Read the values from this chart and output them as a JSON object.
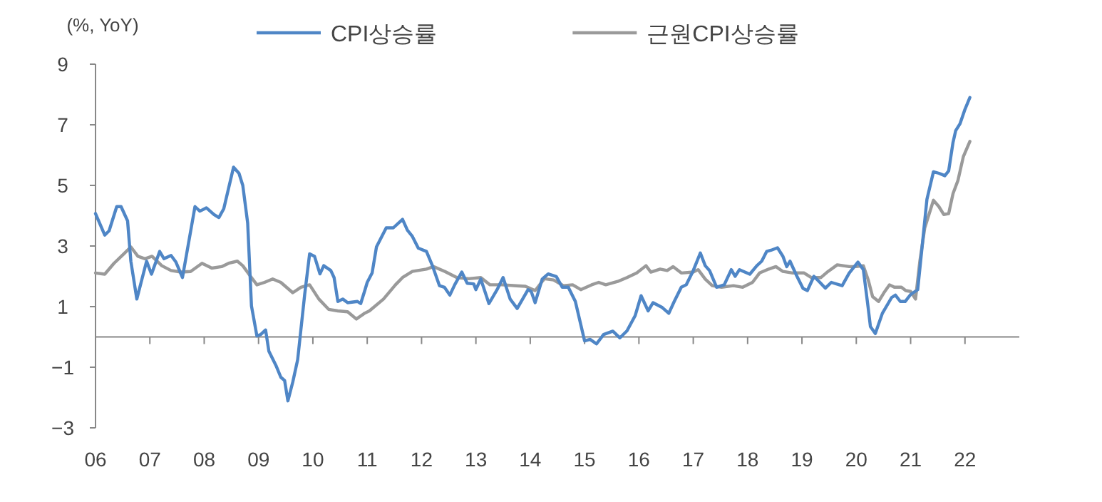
{
  "chart_data": {
    "type": "line",
    "ylabel": "(%, YoY)",
    "legend": "top",
    "grid": false,
    "marker": "none",
    "line_style": "solid",
    "xlim": [
      2006,
      2023
    ],
    "ylim": [
      -3,
      9
    ],
    "yticks": [
      {
        "value": -3,
        "label": "−3"
      },
      {
        "value": -1,
        "label": "−1"
      },
      1,
      3,
      5,
      7,
      9
    ],
    "xticks": [
      {
        "value": 2006,
        "label": "06"
      },
      {
        "value": 2007,
        "label": "07"
      },
      {
        "value": 2008,
        "label": "08"
      },
      {
        "value": 2009,
        "label": "09"
      },
      {
        "value": 2010,
        "label": "10"
      },
      {
        "value": 2011,
        "label": "11"
      },
      {
        "value": 2012,
        "label": "12"
      },
      {
        "value": 2013,
        "label": "13"
      },
      {
        "value": 2014,
        "label": "14"
      },
      {
        "value": 2015,
        "label": "15"
      },
      {
        "value": 2016,
        "label": "16"
      },
      {
        "value": 2017,
        "label": "17"
      },
      {
        "value": 2018,
        "label": "18"
      },
      {
        "value": 2019,
        "label": "19"
      },
      {
        "value": 2020,
        "label": "20"
      },
      {
        "value": 2021,
        "label": "21"
      },
      {
        "value": 2022,
        "label": "22"
      }
    ],
    "series": [
      {
        "name": "CPI상승률",
        "color": "#4f86c6",
        "x": [
          2006.0,
          2006.17,
          2006.25,
          2006.39,
          2006.47,
          2006.59,
          2006.65,
          2006.76,
          2006.94,
          2007.03,
          2007.18,
          2007.26,
          2007.39,
          2007.48,
          2007.6,
          2007.83,
          2007.92,
          2008.04,
          2008.18,
          2008.27,
          2008.36,
          2008.54,
          2008.64,
          2008.71,
          2008.8,
          2008.87,
          2008.97,
          2009.04,
          2009.13,
          2009.19,
          2009.32,
          2009.41,
          2009.48,
          2009.54,
          2009.63,
          2009.72,
          2009.85,
          2009.94,
          2010.03,
          2010.13,
          2010.2,
          2010.33,
          2010.39,
          2010.46,
          2010.55,
          2010.64,
          2010.82,
          2010.88,
          2010.95,
          2011.0,
          2011.09,
          2011.17,
          2011.35,
          2011.48,
          2011.65,
          2011.74,
          2011.83,
          2011.94,
          2012.09,
          2012.2,
          2012.33,
          2012.42,
          2012.52,
          2012.61,
          2012.74,
          2012.84,
          2012.96,
          2013.0,
          2013.09,
          2013.24,
          2013.39,
          2013.5,
          2013.63,
          2013.76,
          2013.96,
          2014.02,
          2014.09,
          2014.22,
          2014.33,
          2014.48,
          2014.59,
          2014.7,
          2014.83,
          2015.0,
          2015.1,
          2015.22,
          2015.35,
          2015.52,
          2015.65,
          2015.78,
          2015.93,
          2016.04,
          2016.17,
          2016.26,
          2016.43,
          2016.55,
          2016.65,
          2016.78,
          2016.87,
          2017.0,
          2017.13,
          2017.22,
          2017.3,
          2017.43,
          2017.57,
          2017.7,
          2017.77,
          2017.85,
          2018.04,
          2018.17,
          2018.26,
          2018.35,
          2018.43,
          2018.55,
          2018.65,
          2018.72,
          2018.78,
          2018.9,
          2019.02,
          2019.1,
          2019.22,
          2019.33,
          2019.43,
          2019.54,
          2019.74,
          2019.87,
          2020.03,
          2020.13,
          2020.22,
          2020.26,
          2020.35,
          2020.48,
          2020.65,
          2020.72,
          2020.81,
          2020.9,
          2021.0,
          2021.13,
          2021.22,
          2021.3,
          2021.42,
          2021.52,
          2021.63,
          2021.7,
          2021.78,
          2021.83,
          2021.91,
          2022.0,
          2022.09
        ],
        "values": [
          4.07,
          3.36,
          3.5,
          4.3,
          4.3,
          3.83,
          2.5,
          1.25,
          2.5,
          2.07,
          2.82,
          2.58,
          2.69,
          2.47,
          1.96,
          4.3,
          4.15,
          4.26,
          4.04,
          3.94,
          4.23,
          5.6,
          5.4,
          5.0,
          3.76,
          1.02,
          0.03,
          0.08,
          0.23,
          -0.47,
          -0.94,
          -1.33,
          -1.44,
          -2.11,
          -1.49,
          -0.75,
          1.41,
          2.74,
          2.66,
          2.08,
          2.35,
          2.19,
          1.96,
          1.17,
          1.25,
          1.13,
          1.17,
          1.1,
          1.5,
          1.8,
          2.11,
          2.97,
          3.6,
          3.6,
          3.88,
          3.52,
          3.32,
          2.93,
          2.82,
          2.35,
          1.69,
          1.64,
          1.38,
          1.72,
          2.14,
          1.77,
          1.75,
          1.56,
          1.91,
          1.1,
          1.56,
          1.96,
          1.25,
          0.94,
          1.56,
          1.49,
          1.13,
          1.91,
          2.08,
          1.99,
          1.64,
          1.64,
          1.17,
          -0.13,
          -0.08,
          -0.23,
          0.08,
          0.19,
          -0.03,
          0.2,
          0.7,
          1.36,
          0.86,
          1.13,
          0.97,
          0.78,
          1.17,
          1.64,
          1.72,
          2.19,
          2.77,
          2.35,
          2.19,
          1.64,
          1.72,
          2.22,
          2.0,
          2.22,
          2.07,
          2.35,
          2.5,
          2.82,
          2.86,
          2.94,
          2.66,
          2.32,
          2.5,
          2.03,
          1.6,
          1.53,
          2.0,
          1.8,
          1.61,
          1.8,
          1.69,
          2.11,
          2.47,
          2.22,
          0.94,
          0.34,
          0.11,
          0.78,
          1.3,
          1.38,
          1.17,
          1.17,
          1.4,
          1.56,
          3.13,
          4.54,
          5.45,
          5.4,
          5.32,
          5.48,
          6.42,
          6.81,
          7.04,
          7.51,
          7.9
        ]
      },
      {
        "name": "근원CPI상승률",
        "color": "#9a9a9a",
        "x": [
          2006.0,
          2006.17,
          2006.34,
          2006.52,
          2006.65,
          2006.78,
          2006.91,
          2007.04,
          2007.22,
          2007.39,
          2007.57,
          2007.75,
          2007.96,
          2008.14,
          2008.32,
          2008.45,
          2008.61,
          2008.71,
          2008.84,
          2008.97,
          2009.11,
          2009.26,
          2009.41,
          2009.63,
          2009.78,
          2009.94,
          2010.11,
          2010.29,
          2010.46,
          2010.64,
          2010.8,
          2010.95,
          2011.04,
          2011.3,
          2011.52,
          2011.65,
          2011.83,
          2012.09,
          2012.22,
          2012.43,
          2012.65,
          2012.87,
          2013.09,
          2013.26,
          2013.48,
          2013.74,
          2013.91,
          2014.09,
          2014.26,
          2014.43,
          2014.61,
          2014.78,
          2014.93,
          2015.13,
          2015.26,
          2015.39,
          2015.61,
          2015.78,
          2015.96,
          2016.13,
          2016.22,
          2016.39,
          2016.52,
          2016.63,
          2016.78,
          2017.0,
          2017.09,
          2017.22,
          2017.35,
          2017.52,
          2017.74,
          2017.91,
          2018.09,
          2018.22,
          2018.39,
          2018.52,
          2018.65,
          2018.83,
          2019.04,
          2019.17,
          2019.35,
          2019.48,
          2019.65,
          2019.87,
          2020.0,
          2020.13,
          2020.22,
          2020.3,
          2020.41,
          2020.52,
          2020.61,
          2020.7,
          2020.83,
          2020.91,
          2021.0,
          2021.09,
          2021.17,
          2021.26,
          2021.42,
          2021.52,
          2021.61,
          2021.7,
          2021.78,
          2021.87,
          2021.97,
          2022.09
        ],
        "values": [
          2.11,
          2.07,
          2.43,
          2.74,
          2.97,
          2.66,
          2.58,
          2.66,
          2.35,
          2.19,
          2.14,
          2.16,
          2.43,
          2.27,
          2.32,
          2.43,
          2.5,
          2.35,
          2.03,
          1.72,
          1.8,
          1.91,
          1.8,
          1.46,
          1.64,
          1.72,
          1.25,
          0.91,
          0.86,
          0.83,
          0.59,
          0.78,
          0.86,
          1.25,
          1.72,
          1.96,
          2.16,
          2.24,
          2.32,
          2.16,
          1.96,
          1.92,
          1.96,
          1.72,
          1.72,
          1.69,
          1.67,
          1.53,
          1.92,
          1.88,
          1.69,
          1.72,
          1.56,
          1.72,
          1.8,
          1.72,
          1.83,
          1.96,
          2.11,
          2.35,
          2.14,
          2.24,
          2.19,
          2.32,
          2.11,
          2.14,
          2.22,
          1.91,
          1.69,
          1.64,
          1.69,
          1.64,
          1.8,
          2.11,
          2.24,
          2.32,
          2.16,
          2.11,
          2.11,
          1.96,
          1.96,
          2.16,
          2.38,
          2.32,
          2.32,
          2.35,
          1.88,
          1.33,
          1.17,
          1.49,
          1.72,
          1.64,
          1.64,
          1.53,
          1.5,
          1.25,
          2.5,
          3.6,
          4.51,
          4.3,
          4.04,
          4.07,
          4.73,
          5.16,
          5.95,
          6.45
        ]
      }
    ]
  }
}
